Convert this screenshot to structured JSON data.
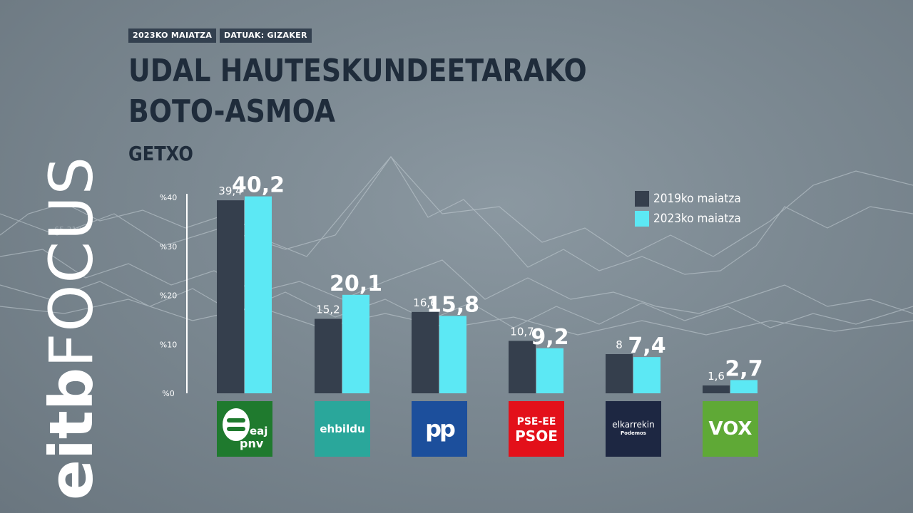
{
  "header": {
    "date_tag": "2023KO MAIATZA",
    "source_tag": "DATUAK: GIZAKER",
    "title_line1": "UDAL HAUTESKUNDEETARAKO",
    "title_line2": "BOTO-ASMOA",
    "subtitle": "GETXO"
  },
  "brand": {
    "part1": "eitb",
    "part2": "FOCUS"
  },
  "colors": {
    "series_2019": "#353f4d",
    "series_2023": "#5ce8f4",
    "title": "#1f2c3b"
  },
  "chart_data": {
    "type": "bar",
    "categories": [
      "EAJ-PNV",
      "EH Bildu",
      "PP",
      "PSE-EE PSOE",
      "Elkarrekin Podemos",
      "VOX"
    ],
    "series": [
      {
        "name": "2019ko maiatza",
        "values": [
          39.4,
          15.2,
          16.6,
          10.7,
          8,
          1.6
        ],
        "labels": [
          "39,4",
          "15,2",
          "16,6",
          "10,7",
          "8",
          "1,6"
        ]
      },
      {
        "name": "2023ko maiatza",
        "values": [
          40.2,
          20.1,
          15.8,
          9.2,
          7.4,
          2.7
        ],
        "labels": [
          "40,2",
          "20,1",
          "15,8",
          "9,2",
          "7,4",
          "2,7"
        ]
      }
    ],
    "yticks": [
      "%0",
      "%10",
      "%20",
      "%30",
      "%40"
    ],
    "ylim": [
      0,
      40
    ],
    "legend_position": "top-right",
    "grid": false
  },
  "logos": [
    {
      "name": "eaj-pnv",
      "bg": "#1f7a2e",
      "line1": "eaj",
      "line2": "pnv"
    },
    {
      "name": "ehbildu",
      "bg": "#2aa79b",
      "line1": "ehbildu",
      "line2": ""
    },
    {
      "name": "pp",
      "bg": "#1c4f9c",
      "line1": "pp",
      "line2": ""
    },
    {
      "name": "pse-ee-psoe",
      "bg": "#e3101a",
      "line1": "PSE-EE",
      "line2": "PSOE"
    },
    {
      "name": "elkarrekin",
      "bg": "#1d2742",
      "line1": "elkarrekin",
      "line2": "Podemos"
    },
    {
      "name": "vox",
      "bg": "#5fa936",
      "line1": "VOX",
      "line2": ""
    }
  ]
}
